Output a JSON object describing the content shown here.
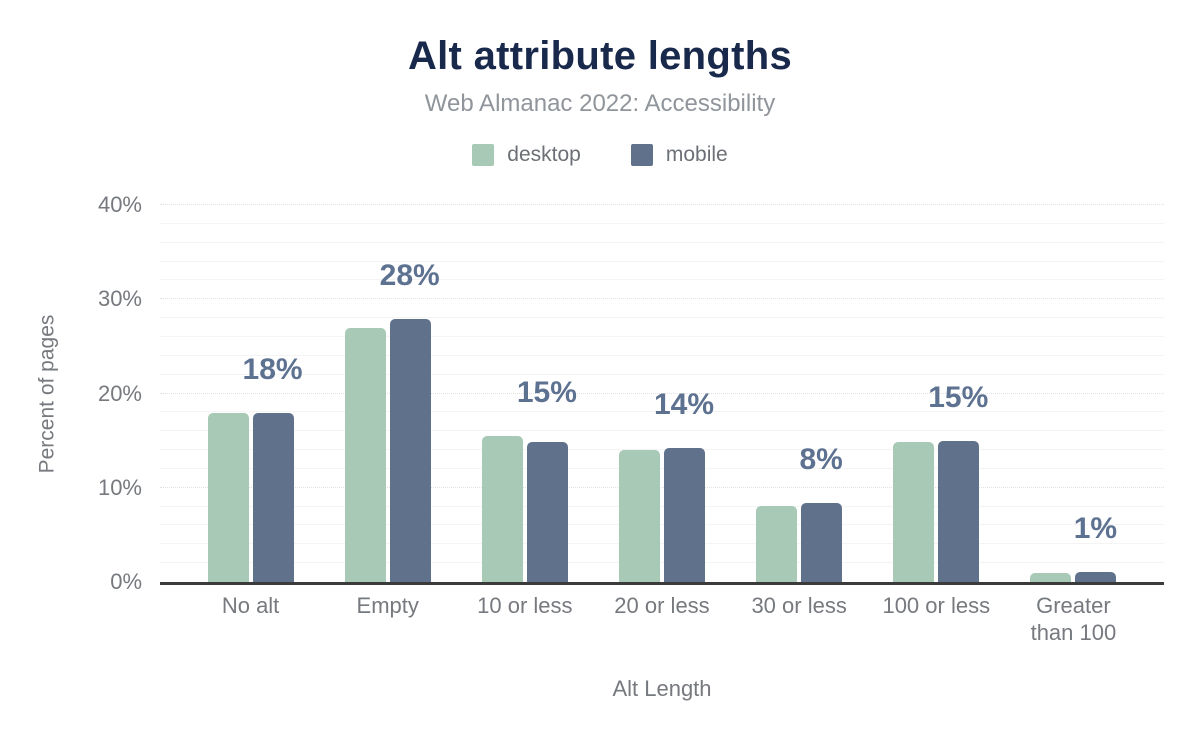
{
  "header": {
    "title": "Alt attribute lengths",
    "subtitle": "Web Almanac 2022: Accessibility"
  },
  "legend": [
    {
      "label": "desktop",
      "color": "#a8c9b6"
    },
    {
      "label": "mobile",
      "color": "#60718c"
    }
  ],
  "colors": {
    "title": "#19294c",
    "subtitle": "#8f959b",
    "axis_text": "#76797e",
    "value_label": "#5d7190",
    "axis_line": "#3b3b3b",
    "desktop_bar": "#a8c9b6",
    "mobile_bar": "#60718c"
  },
  "chart_data": {
    "type": "bar",
    "title": "Alt attribute lengths",
    "subtitle": "Web Almanac 2022: Accessibility",
    "xlabel": "Alt Length",
    "ylabel": "Percent of pages",
    "ylim": [
      0,
      40
    ],
    "y_ticks": [
      "0%",
      "10%",
      "20%",
      "30%",
      "40%"
    ],
    "grid": {
      "minor_step": 2,
      "major_step": 10,
      "orientation": "horizontal"
    },
    "legend_position": "top",
    "categories": [
      "No alt",
      "Empty",
      "10 or less",
      "20 or less",
      "30 or less",
      "100 or less",
      "Greater than 100"
    ],
    "series": [
      {
        "name": "desktop",
        "color": "#a8c9b6",
        "values": [
          17.9,
          26.9,
          15.5,
          14.0,
          8.1,
          14.9,
          1.0
        ]
      },
      {
        "name": "mobile",
        "color": "#60718c",
        "values": [
          17.9,
          27.9,
          14.9,
          14.2,
          8.4,
          15.0,
          1.1
        ]
      }
    ],
    "annotations": [
      "18%",
      "28%",
      "15%",
      "14%",
      "8%",
      "15%",
      "1%"
    ]
  }
}
